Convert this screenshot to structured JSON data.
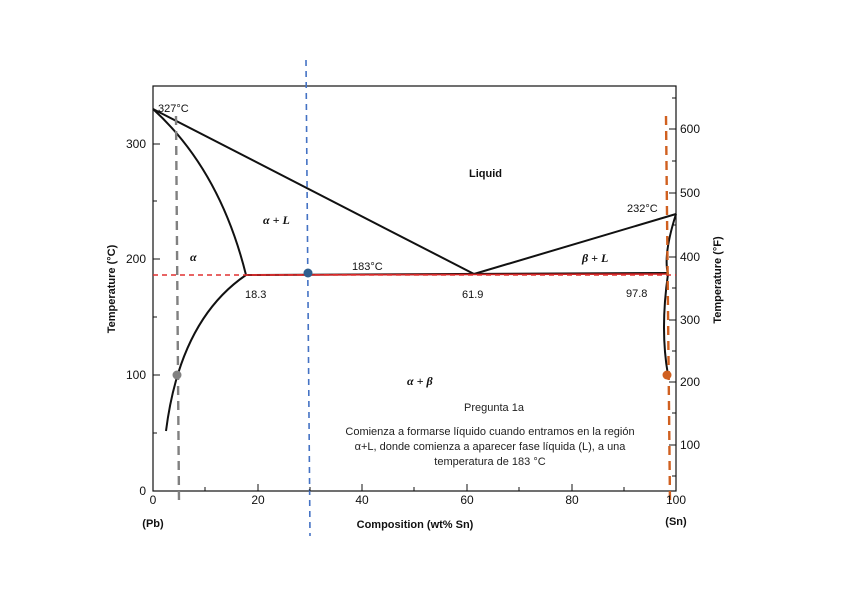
{
  "chart": {
    "x_axis": {
      "label": "Composition (wt% Sn)",
      "ticks": [
        "0",
        "20",
        "40",
        "60",
        "80",
        "100"
      ],
      "left_end": "(Pb)",
      "right_end": "(Sn)"
    },
    "y_axis_left": {
      "label": "Temperature (°C)",
      "ticks": [
        "0",
        "100",
        "200",
        "300"
      ]
    },
    "y_axis_right": {
      "label": "Temperature (°F)",
      "ticks": [
        "100",
        "200",
        "300",
        "400",
        "500",
        "600"
      ]
    },
    "annotations": {
      "pb_melting": "327°C",
      "sn_melting": "232°C",
      "eutectic_temp": "183°C",
      "comp_alpha": "18.3",
      "comp_eutectic": "61.9",
      "comp_beta": "97.8"
    },
    "regions": {
      "liquid": "Liquid",
      "alpha_plus_liquid": "α + L",
      "beta_plus_liquid": "β + L",
      "alpha": "α",
      "alpha_plus_beta": "α + β"
    }
  },
  "note": {
    "title": "Pregunta 1a",
    "line1": "Comienza a formarse líquido cuando entramos en la región",
    "line2": "α+L, donde comienza a aparecer fase líquida (L), a una",
    "line3": "temperatura de 183 °C"
  },
  "colors": {
    "grey_dashed": "#808080",
    "blue_dashed": "#4472c4",
    "red_dashed": "#e03030",
    "orange_dashed": "#d06020",
    "red_line": "#cc2222"
  }
}
